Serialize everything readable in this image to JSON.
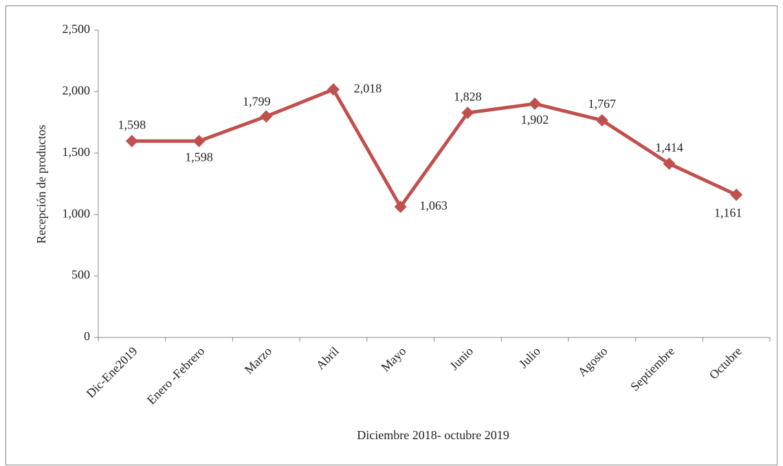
{
  "chart_data": {
    "type": "line",
    "x_label": "Diciembre 2018-  octubre 2019",
    "y_label": "Recepción de productos",
    "categories": [
      "Dic-Ene2019",
      "Enero -Febrero",
      "Marzo",
      "Abril",
      "Mayo",
      "Junio",
      "Julio",
      "Agosto",
      "Septiembre",
      "Octubre"
    ],
    "values": [
      1598,
      1598,
      1799,
      2018,
      1063,
      1828,
      1902,
      1767,
      1414,
      1161
    ],
    "value_labels": [
      "1,598",
      "1,598",
      "1,799",
      "2,018",
      "1,063",
      "1,828",
      "1,902",
      "1,767",
      "1,414",
      "1,161"
    ],
    "color": "#c0504d",
    "ylim": [
      0,
      2500
    ],
    "yticks": [
      0,
      500,
      {
        "value": 1000,
        "label": "1,000"
      },
      {
        "value": 1500,
        "label": "1,500"
      },
      {
        "value": 2000,
        "label": "2,000"
      },
      {
        "value": 2500,
        "label": "2,500"
      }
    ],
    "grid": false
  }
}
